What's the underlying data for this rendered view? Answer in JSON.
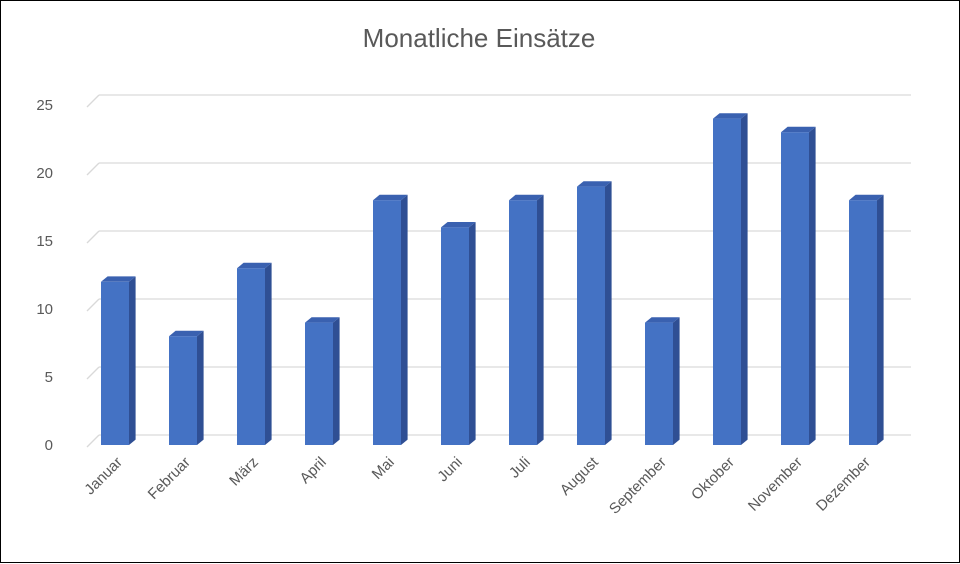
{
  "chart_data": {
    "type": "bar",
    "title": "Monatliche Einsätze",
    "categories": [
      "Januar",
      "Februar",
      "März",
      "April",
      "Mai",
      "Juni",
      "Juli",
      "August",
      "September",
      "Oktober",
      "November",
      "Dezember"
    ],
    "values": [
      12,
      8,
      13,
      9,
      18,
      16,
      18,
      19,
      9,
      24,
      23,
      18
    ],
    "ylim": [
      0,
      25
    ],
    "yticks": [
      "0",
      "5",
      "10",
      "15",
      "20",
      "25"
    ],
    "grid": true,
    "legend": "none",
    "colors": {
      "bar_front": "#4472c4",
      "bar_side": "#2f4f94",
      "bar_top": "#3a61b0",
      "grid": "#d9d9d9"
    }
  }
}
